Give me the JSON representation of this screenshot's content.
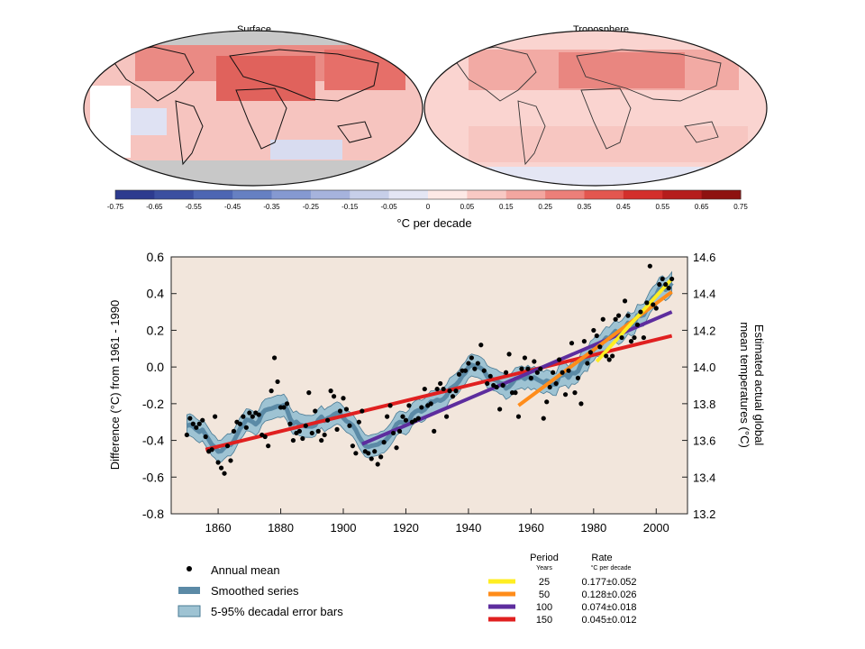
{
  "maps": {
    "left_title": "Surface",
    "right_title": "Troposphere",
    "colorbar": {
      "ticks": [
        "-0.75",
        "-0.65",
        "-0.55",
        "-0.45",
        "-0.35",
        "-0.25",
        "-0.15",
        "-0.05",
        "0",
        "0.05",
        "0.15",
        "0.25",
        "0.35",
        "0.45",
        "0.55",
        "0.65",
        "0.75"
      ],
      "colors": [
        "#2d3b8f",
        "#3b4fa0",
        "#4d66b3",
        "#6680c2",
        "#8599d1",
        "#a6b3dd",
        "#c7cfe9",
        "#e4e6f4",
        "#fde9e6",
        "#f8c9c4",
        "#f3a6a0",
        "#ec7f79",
        "#e3564f",
        "#d32f2b",
        "#b51d1c",
        "#8e1210"
      ],
      "label": "°C per decade"
    }
  },
  "chart_data": {
    "type": "line",
    "xlim": [
      1845,
      2010
    ],
    "ylim": [
      -0.8,
      0.6
    ],
    "ylabel": "Difference (°C) from 1961 - 1990",
    "ylabel_right": "Estimated actual global mean temperatures (°C)",
    "ylabel_right_lines": [
      "Estimated actual global",
      "mean temperatures (°C)"
    ],
    "x_ticks": [
      "1860",
      "1880",
      "1900",
      "1920",
      "1940",
      "1960",
      "1980",
      "2000"
    ],
    "x_tick_values": [
      1860,
      1880,
      1900,
      1920,
      1940,
      1960,
      1980,
      2000
    ],
    "y_ticks": [
      "0.6",
      "0.4",
      "0.2",
      "0.0",
      "-0.2",
      "-0.4",
      "-0.6",
      "-0.8"
    ],
    "y_tick_values": [
      0.6,
      0.4,
      0.2,
      0.0,
      -0.2,
      -0.4,
      -0.6,
      -0.8
    ],
    "y2_ticks": [
      "14.6",
      "14.4",
      "14.2",
      "14.0",
      "13.8",
      "13.6",
      "13.4",
      "13.2"
    ],
    "y2_tick_values": [
      14.6,
      14.4,
      14.2,
      14.0,
      13.8,
      13.6,
      13.4,
      13.2
    ],
    "background_color": "#f2e6dc",
    "annual_mean": {
      "x": [
        1850,
        1851,
        1852,
        1853,
        1854,
        1855,
        1856,
        1857,
        1858,
        1859,
        1860,
        1861,
        1862,
        1863,
        1864,
        1865,
        1866,
        1867,
        1868,
        1869,
        1870,
        1871,
        1872,
        1873,
        1874,
        1875,
        1876,
        1877,
        1878,
        1879,
        1880,
        1881,
        1882,
        1883,
        1884,
        1885,
        1886,
        1887,
        1888,
        1889,
        1890,
        1891,
        1892,
        1893,
        1894,
        1895,
        1896,
        1897,
        1898,
        1899,
        1900,
        1901,
        1902,
        1903,
        1904,
        1905,
        1906,
        1907,
        1908,
        1909,
        1910,
        1911,
        1912,
        1913,
        1914,
        1915,
        1916,
        1917,
        1918,
        1919,
        1920,
        1921,
        1922,
        1923,
        1924,
        1925,
        1926,
        1927,
        1928,
        1929,
        1930,
        1931,
        1932,
        1933,
        1934,
        1935,
        1936,
        1937,
        1938,
        1939,
        1940,
        1941,
        1942,
        1943,
        1944,
        1945,
        1946,
        1947,
        1948,
        1949,
        1950,
        1951,
        1952,
        1953,
        1954,
        1955,
        1956,
        1957,
        1958,
        1959,
        1960,
        1961,
        1962,
        1963,
        1964,
        1965,
        1966,
        1967,
        1968,
        1969,
        1970,
        1971,
        1972,
        1973,
        1974,
        1975,
        1976,
        1977,
        1978,
        1979,
        1980,
        1981,
        1982,
        1983,
        1984,
        1985,
        1986,
        1987,
        1988,
        1989,
        1990,
        1991,
        1992,
        1993,
        1994,
        1995,
        1996,
        1997,
        1998,
        1999,
        2000,
        2001,
        2002,
        2003,
        2004,
        2005
      ],
      "y": [
        -0.37,
        -0.28,
        -0.31,
        -0.33,
        -0.31,
        -0.29,
        -0.38,
        -0.46,
        -0.45,
        -0.27,
        -0.52,
        -0.55,
        -0.58,
        -0.43,
        -0.51,
        -0.35,
        -0.3,
        -0.31,
        -0.27,
        -0.33,
        -0.25,
        -0.27,
        -0.25,
        -0.26,
        -0.37,
        -0.38,
        -0.43,
        -0.13,
        0.05,
        -0.08,
        -0.22,
        -0.22,
        -0.2,
        -0.31,
        -0.4,
        -0.36,
        -0.35,
        -0.39,
        -0.32,
        -0.14,
        -0.36,
        -0.24,
        -0.35,
        -0.4,
        -0.37,
        -0.29,
        -0.13,
        -0.16,
        -0.34,
        -0.24,
        -0.17,
        -0.23,
        -0.32,
        -0.43,
        -0.47,
        -0.3,
        -0.24,
        -0.46,
        -0.47,
        -0.5,
        -0.46,
        -0.53,
        -0.49,
        -0.41,
        -0.27,
        -0.21,
        -0.36,
        -0.44,
        -0.35,
        -0.27,
        -0.29,
        -0.21,
        -0.3,
        -0.29,
        -0.28,
        -0.22,
        -0.12,
        -0.21,
        -0.2,
        -0.35,
        -0.12,
        -0.09,
        -0.12,
        -0.27,
        -0.13,
        -0.16,
        -0.13,
        -0.04,
        -0.02,
        -0.02,
        0.02,
        0.05,
        -0.01,
        0.02,
        0.12,
        -0.02,
        -0.09,
        -0.05,
        -0.1,
        -0.11,
        -0.23,
        -0.1,
        -0.03,
        0.07,
        -0.14,
        -0.14,
        -0.27,
        -0.01,
        0.05,
        -0.01,
        -0.06,
        0.03,
        -0.03,
        -0.01,
        -0.28,
        -0.19,
        -0.11,
        -0.03,
        -0.09,
        0.04,
        -0.03,
        -0.15,
        -0.02,
        0.13,
        -0.14,
        -0.06,
        -0.2,
        0.14,
        0.02,
        0.08,
        0.2,
        0.17,
        0.11,
        0.26,
        0.06,
        0.04,
        0.06,
        0.26,
        0.28,
        0.16,
        0.36,
        0.28,
        0.14,
        0.16,
        0.23,
        0.3,
        0.16,
        0.35,
        0.55,
        0.34,
        0.32,
        0.45,
        0.48,
        0.45,
        0.43,
        0.48
      ]
    },
    "trend_lines": [
      {
        "period": "150",
        "rate": "0.045±0.012",
        "color": "#e02020",
        "x": [
          1856,
          2005
        ],
        "y": [
          -0.45,
          0.17
        ]
      },
      {
        "period": "100",
        "rate": "0.074±0.018",
        "color": "#5d2d9e",
        "x": [
          1906,
          2005
        ],
        "y": [
          -0.42,
          0.3
        ]
      },
      {
        "period": "50",
        "rate": "0.128±0.026",
        "color": "#ff8c1a",
        "x": [
          1956,
          2005
        ],
        "y": [
          -0.21,
          0.41
        ]
      },
      {
        "period": "25",
        "rate": "0.177±0.052",
        "color": "#ffee22",
        "x": [
          1981,
          2005
        ],
        "y": [
          0.03,
          0.48
        ]
      }
    ]
  },
  "legend": {
    "annual_mean": "Annual mean",
    "smoothed_series": "Smoothed series",
    "error_bars": "5-95% decadal error bars",
    "period_header": "Period",
    "period_sub": "Years",
    "rate_header": "Rate",
    "rate_sub": "°C per decade",
    "rows": [
      {
        "period": "25",
        "rate": "0.177±0.052",
        "color": "#ffee22"
      },
      {
        "period": "50",
        "rate": "0.128±0.026",
        "color": "#ff8c1a"
      },
      {
        "period": "100",
        "rate": "0.074±0.018",
        "color": "#5d2d9e"
      },
      {
        "period": "150",
        "rate": "0.045±0.012",
        "color": "#e02020"
      }
    ]
  }
}
